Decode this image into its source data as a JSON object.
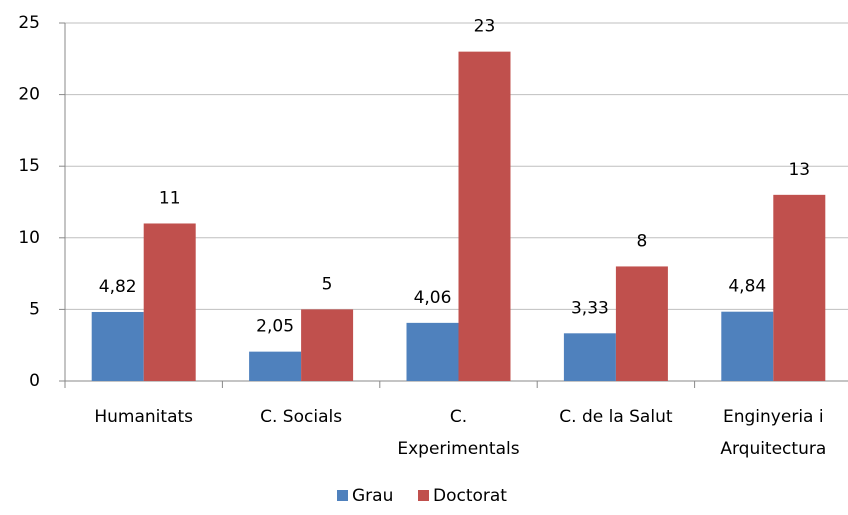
{
  "chart_data": {
    "type": "bar",
    "categories": [
      [
        "Humanitats"
      ],
      [
        "C. Socials"
      ],
      [
        "C.",
        "Experimentals"
      ],
      [
        "C. de la Salut"
      ],
      [
        "Enginyeria i",
        "Arquitectura"
      ]
    ],
    "series": [
      {
        "name": "Grau",
        "color": "#4f81bd",
        "values": [
          4.82,
          2.05,
          4.06,
          3.33,
          4.84
        ],
        "value_labels": [
          "4,82",
          "2,05",
          "4,06",
          "3,33",
          "4,84"
        ]
      },
      {
        "name": "Doctorat",
        "color": "#c0504d",
        "values": [
          11,
          5,
          23,
          8,
          13
        ]
      }
    ],
    "ylim": [
      0,
      25
    ],
    "yticks": [
      0,
      5,
      10,
      15,
      20,
      25
    ],
    "grid": true,
    "legend": "bottom"
  }
}
